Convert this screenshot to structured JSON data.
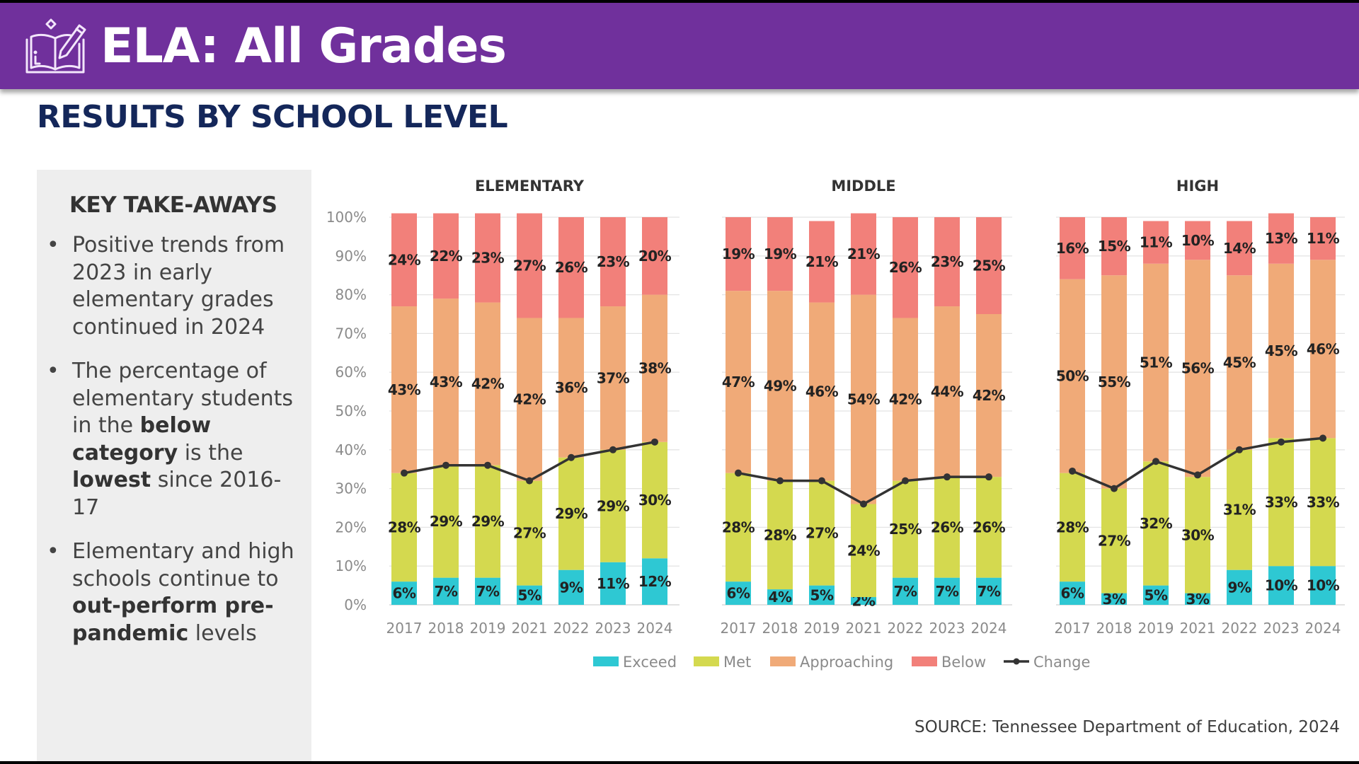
{
  "header": {
    "title": "ELA: All Grades",
    "icon": "book-pencil-icon"
  },
  "subtitle": "RESULTS BY SCHOOL LEVEL",
  "takeaways": {
    "title": "KEY TAKE-AWAYS",
    "items": [
      {
        "parts": [
          {
            "text": "Positive trends from 2023 in early elementary grades continued in 2024",
            "bold": false
          }
        ]
      },
      {
        "parts": [
          {
            "text": "The percentage of elementary students in the ",
            "bold": false
          },
          {
            "text": "below category",
            "bold": true
          },
          {
            "text": " is the ",
            "bold": false
          },
          {
            "text": "lowest",
            "bold": true
          },
          {
            "text": " since 2016-17",
            "bold": false
          }
        ]
      },
      {
        "parts": [
          {
            "text": "Elementary and high schools continue to ",
            "bold": false
          },
          {
            "text": "out-perform pre-pandemic",
            "bold": true
          },
          {
            "text": " levels",
            "bold": false
          }
        ]
      }
    ]
  },
  "source": "SOURCE: Tennessee Department of Education, 2024",
  "colors": {
    "banner": "#70309c",
    "subtitle": "#14275a",
    "exceed": "#2ec8d3",
    "met": "#d4d94f",
    "approaching": "#f0aa78",
    "below": "#f2807a",
    "change": "#333333"
  },
  "chart_data": [
    {
      "type": "bar",
      "stacked": true,
      "title": "ELEMENTARY",
      "categories": [
        "2017",
        "2018",
        "2019",
        "2021",
        "2022",
        "2023",
        "2024"
      ],
      "ylim": [
        0,
        100
      ],
      "yticks": [
        "0%",
        "10%",
        "20%",
        "30%",
        "40%",
        "50%",
        "60%",
        "70%",
        "80%",
        "90%",
        "100%"
      ],
      "grid": true,
      "series": [
        {
          "name": "Exceed",
          "values": [
            6,
            7,
            7,
            5,
            9,
            11,
            12
          ]
        },
        {
          "name": "Met",
          "values": [
            28,
            29,
            29,
            27,
            29,
            29,
            30
          ]
        },
        {
          "name": "Approaching",
          "values": [
            43,
            43,
            42,
            42,
            36,
            37,
            38
          ]
        },
        {
          "name": "Below",
          "values": [
            24,
            22,
            23,
            27,
            26,
            23,
            20
          ]
        },
        {
          "name": "Change",
          "type": "line",
          "values": [
            34,
            36,
            36,
            32,
            38,
            40,
            42
          ]
        }
      ]
    },
    {
      "type": "bar",
      "stacked": true,
      "title": "MIDDLE",
      "categories": [
        "2017",
        "2018",
        "2019",
        "2021",
        "2022",
        "2023",
        "2024"
      ],
      "ylim": [
        0,
        100
      ],
      "grid": true,
      "series": [
        {
          "name": "Exceed",
          "values": [
            6,
            4,
            5,
            2,
            7,
            7,
            7
          ]
        },
        {
          "name": "Met",
          "values": [
            28,
            28,
            27,
            24,
            25,
            26,
            26
          ]
        },
        {
          "name": "Approaching",
          "values": [
            47,
            49,
            46,
            54,
            42,
            44,
            42
          ]
        },
        {
          "name": "Below",
          "values": [
            19,
            19,
            21,
            21,
            26,
            23,
            25
          ]
        },
        {
          "name": "Change",
          "type": "line",
          "values": [
            34,
            32,
            32,
            26,
            32,
            33,
            33
          ]
        }
      ]
    },
    {
      "type": "bar",
      "stacked": true,
      "title": "HIGH",
      "categories": [
        "2017",
        "2018",
        "2019",
        "2021",
        "2022",
        "2023",
        "2024"
      ],
      "ylim": [
        0,
        100
      ],
      "grid": true,
      "series": [
        {
          "name": "Exceed",
          "values": [
            6,
            3,
            5,
            3,
            9,
            10,
            10
          ]
        },
        {
          "name": "Met",
          "values": [
            28,
            27,
            32,
            30,
            31,
            33,
            33
          ]
        },
        {
          "name": "Approaching",
          "values": [
            50,
            55,
            51,
            56,
            45,
            45,
            46
          ]
        },
        {
          "name": "Below",
          "values": [
            16,
            15,
            11,
            10,
            14,
            13,
            11
          ]
        },
        {
          "name": "Change",
          "type": "line",
          "values": [
            34.5,
            30,
            37,
            33.5,
            40,
            42,
            43
          ]
        }
      ]
    }
  ],
  "legend": {
    "position": "bottom",
    "items": [
      {
        "label": "Exceed",
        "key": "exceed",
        "kind": "box"
      },
      {
        "label": "Met",
        "key": "met",
        "kind": "box"
      },
      {
        "label": "Approaching",
        "key": "approaching",
        "kind": "box"
      },
      {
        "label": "Below",
        "key": "below",
        "kind": "box"
      },
      {
        "label": "Change",
        "key": "change",
        "kind": "line"
      }
    ]
  }
}
